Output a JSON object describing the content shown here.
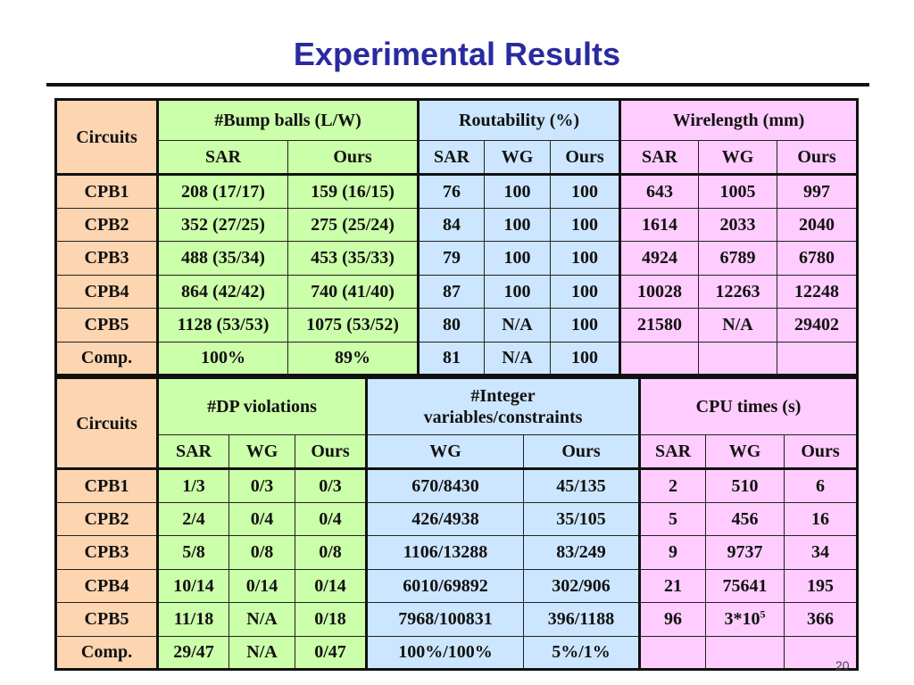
{
  "title": "Experimental Results",
  "page_number": "20",
  "table1": {
    "circuits_label": "Circuits",
    "groups": {
      "bump": "#Bump balls (L/W)",
      "rout": "Routability (%)",
      "wire": "Wirelength (mm)"
    },
    "sub": [
      "SAR",
      "Ours",
      "SAR",
      "WG",
      "Ours",
      "SAR",
      "WG",
      "Ours"
    ],
    "rows": [
      [
        "CPB1",
        "208 (17/17)",
        "159 (16/15)",
        "76",
        "100",
        "100",
        "643",
        "1005",
        "997"
      ],
      [
        "CPB2",
        "352 (27/25)",
        "275 (25/24)",
        "84",
        "100",
        "100",
        "1614",
        "2033",
        "2040"
      ],
      [
        "CPB3",
        "488 (35/34)",
        "453 (35/33)",
        "79",
        "100",
        "100",
        "4924",
        "6789",
        "6780"
      ],
      [
        "CPB4",
        "864 (42/42)",
        "740 (41/40)",
        "87",
        "100",
        "100",
        "10028",
        "12263",
        "12248"
      ],
      [
        "CPB5",
        "1128 (53/53)",
        "1075 (53/52)",
        "80",
        "N/A",
        "100",
        "21580",
        "N/A",
        "29402"
      ],
      [
        "Comp.",
        "100%",
        "89%",
        "81",
        "N/A",
        "100",
        "",
        "",
        ""
      ]
    ]
  },
  "table2": {
    "circuits_label": "Circuits",
    "groups": {
      "dp": "#DP violations",
      "int_line1": "#Integer",
      "int_line2": "variables/constraints",
      "cpu": "CPU times (s)"
    },
    "sub": [
      "SAR",
      "WG",
      "Ours",
      "WG",
      "Ours",
      "SAR",
      "WG",
      "Ours"
    ],
    "rows": [
      [
        "CPB1",
        "1/3",
        "0/3",
        "0/3",
        "670/8430",
        "45/135",
        "2",
        "510",
        "6"
      ],
      [
        "CPB2",
        "2/4",
        "0/4",
        "0/4",
        "426/4938",
        "35/105",
        "5",
        "456",
        "16"
      ],
      [
        "CPB3",
        "5/8",
        "0/8",
        "0/8",
        "1106/13288",
        "83/249",
        "9",
        "9737",
        "34"
      ],
      [
        "CPB4",
        "10/14",
        "0/14",
        "0/14",
        "6010/69892",
        "302/906",
        "21",
        "75641",
        "195"
      ],
      [
        "CPB5",
        "11/18",
        "N/A",
        "0/18",
        "7968/100831",
        "396/1188",
        "96",
        "3*10",
        "366"
      ],
      [
        "Comp.",
        "29/47",
        "N/A",
        "0/47",
        "100%/100%",
        "5%/1%",
        "",
        "",
        ""
      ]
    ],
    "cpu_exponent": "5"
  },
  "colors": {
    "title": "#2a2aa0",
    "circuits_bg": "#fdd5b1",
    "green_bg": "#ccffaa",
    "blue_bg": "#cce6ff",
    "pink_bg": "#ffccff"
  }
}
